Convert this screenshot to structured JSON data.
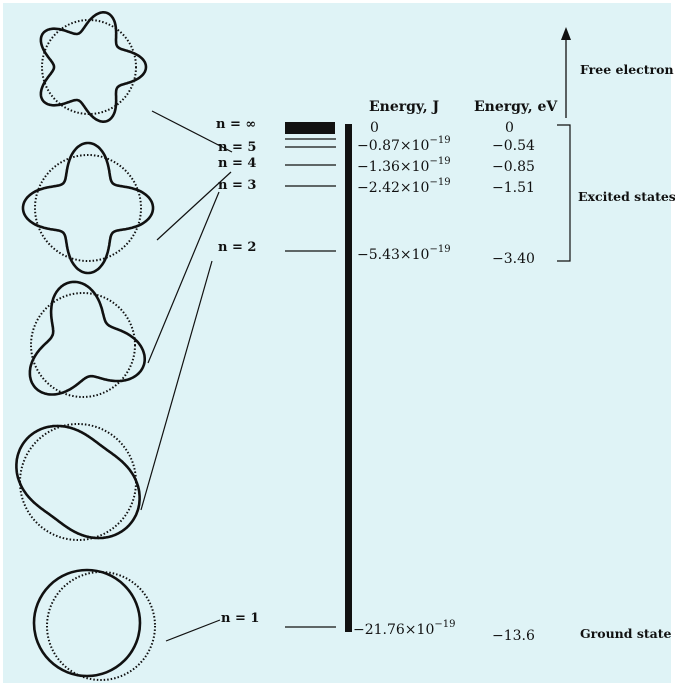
{
  "colors": {
    "panel": "#dff3f6",
    "ink": "#111111"
  },
  "headers": {
    "energy_j": "Energy, J",
    "energy_ev": "Energy, eV"
  },
  "levels": [
    {
      "n": "n = ∞",
      "j_base": "0",
      "j_exp": "",
      "ev": "0"
    },
    {
      "n": "n = 5",
      "j_base": "−0.87×10",
      "j_exp": "−19",
      "ev": "−0.54"
    },
    {
      "n": "n = 4",
      "j_base": "−1.36×10",
      "j_exp": "−19",
      "ev": "−0.85"
    },
    {
      "n": "n = 3",
      "j_base": "−2.42×10",
      "j_exp": "−19",
      "ev": "−1.51"
    },
    {
      "n": "n = 2",
      "j_base": "−5.43×10",
      "j_exp": "−19",
      "ev": "−3.40"
    },
    {
      "n": "n = 1",
      "j_base": "−21.76×10",
      "j_exp": "−19",
      "ev": "−13.6"
    }
  ],
  "annotations": {
    "free_electron": "Free electron",
    "excited_states": "Excited states",
    "ground_state": "Ground state"
  }
}
